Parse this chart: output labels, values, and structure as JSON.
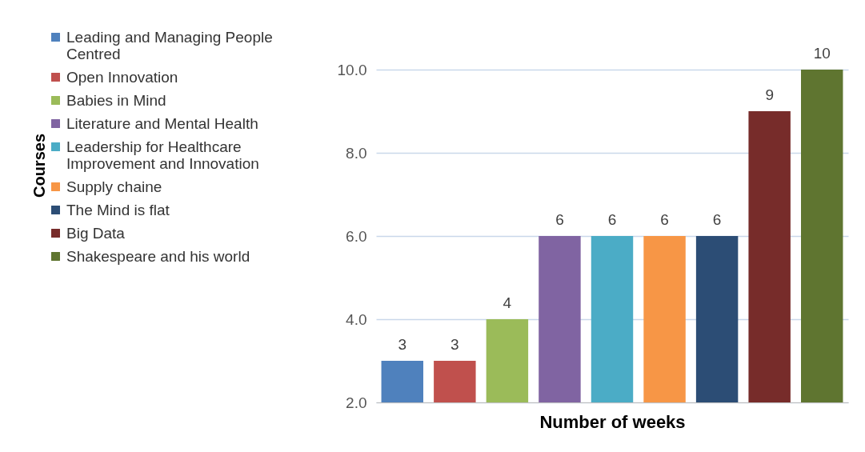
{
  "chart_data": {
    "type": "bar",
    "xlabel": "Number of weeks",
    "annotations": [
      "Courses"
    ],
    "categories": [
      null,
      null,
      null,
      null,
      null,
      null,
      null,
      null,
      null
    ],
    "series": [
      {
        "name": "Leading and Managing People Centred",
        "color": "#4f81bd",
        "values": [
          3,
          null,
          null,
          null,
          null,
          null,
          null,
          null,
          null
        ]
      },
      {
        "name": "Open Innovation",
        "color": "#c0504d",
        "values": [
          null,
          3,
          null,
          null,
          null,
          null,
          null,
          null,
          null
        ]
      },
      {
        "name": "Babies in Mind",
        "color": "#9bbb59",
        "values": [
          null,
          null,
          4,
          null,
          null,
          null,
          null,
          null,
          null
        ]
      },
      {
        "name": "Literature and Mental Health",
        "color": "#8064a2",
        "values": [
          null,
          null,
          null,
          6,
          null,
          null,
          null,
          null,
          null
        ]
      },
      {
        "name": "Leadership for Healthcare Improvement and Innovation",
        "color": "#4bacc6",
        "values": [
          null,
          null,
          null,
          null,
          6,
          null,
          null,
          null,
          null
        ]
      },
      {
        "name": "Supply chaine",
        "color": "#f79646",
        "values": [
          null,
          null,
          null,
          null,
          null,
          6,
          null,
          null,
          null
        ]
      },
      {
        "name": "The Mind is flat",
        "color": "#2c4d75",
        "values": [
          null,
          null,
          null,
          null,
          null,
          null,
          6,
          null,
          null
        ]
      },
      {
        "name": "Big Data",
        "color": "#772c2a",
        "values": [
          null,
          null,
          null,
          null,
          null,
          null,
          null,
          9,
          null
        ]
      },
      {
        "name": "Shakespeare and his world",
        "color": "#5f7530",
        "values": [
          null,
          null,
          null,
          null,
          null,
          null,
          null,
          null,
          10
        ]
      }
    ],
    "ylim": [
      2,
      10
    ],
    "yticks": [
      {
        "value": 2,
        "label": "2.0"
      },
      {
        "value": 4,
        "label": "4.0"
      },
      {
        "value": 6,
        "label": "6.0"
      },
      {
        "value": 8,
        "label": "8.0"
      },
      {
        "value": 10,
        "label": "10.0"
      }
    ],
    "grid": "y",
    "legend": "left",
    "data_labels": true,
    "tick_labels": "y"
  }
}
